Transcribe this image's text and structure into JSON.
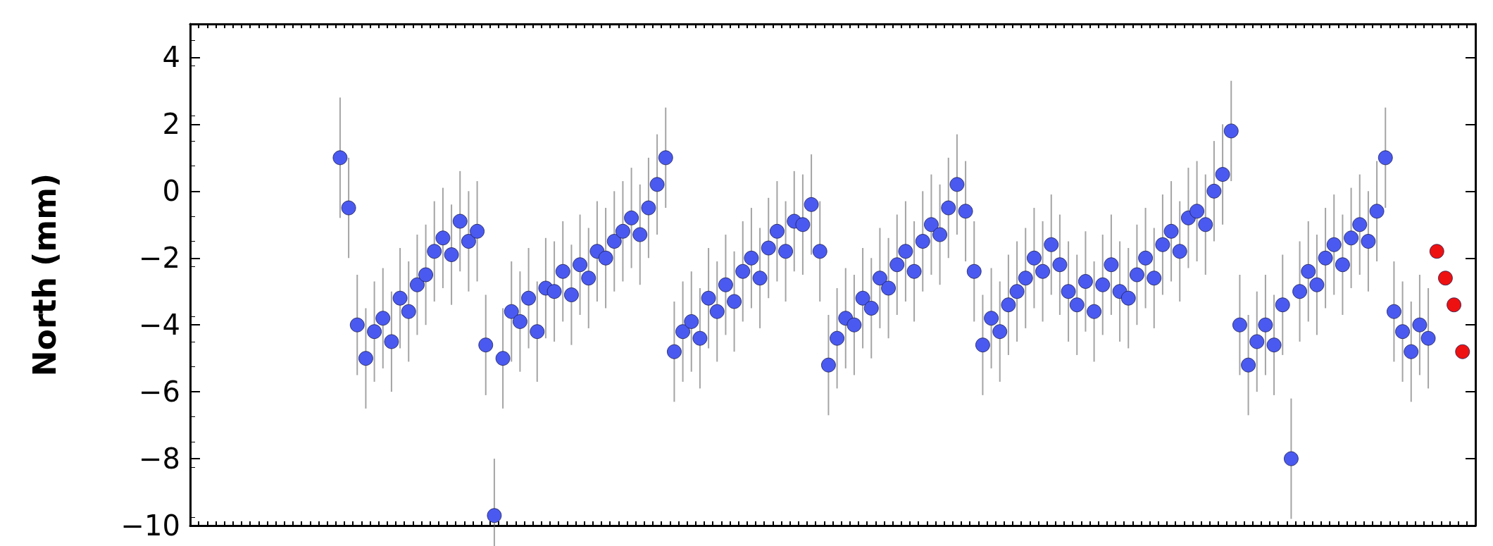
{
  "chart_data": {
    "type": "scatter",
    "ylabel": "North (mm)",
    "ylim": [
      -10,
      5
    ],
    "yticks": [
      {
        "value": -10,
        "label": "−10"
      },
      {
        "value": -8,
        "label": "−8"
      },
      {
        "value": -6,
        "label": "−6"
      },
      {
        "value": -4,
        "label": "−4"
      },
      {
        "value": -2,
        "label": "−2"
      },
      0,
      2,
      4
    ],
    "tick_labels": "y",
    "grid": false,
    "marker": "circle",
    "categories": [
      null,
      null,
      null,
      null,
      null,
      null,
      null,
      null,
      null,
      null,
      null,
      null,
      null,
      null,
      null,
      null,
      null,
      null,
      null,
      null,
      null,
      null,
      null,
      null,
      null,
      null,
      null,
      null,
      null,
      null,
      null,
      null,
      null,
      null,
      null,
      null,
      null,
      null,
      null,
      null,
      null,
      null,
      null,
      null,
      null,
      null,
      null,
      null,
      null,
      null,
      null,
      null,
      null,
      null,
      null,
      null,
      null,
      null,
      null,
      null,
      null,
      null,
      null,
      null,
      null,
      null,
      null,
      null,
      null,
      null,
      null,
      null,
      null,
      null,
      null,
      null,
      null,
      null,
      null,
      null,
      null,
      null,
      null,
      null,
      null,
      null,
      null,
      null,
      null,
      null,
      null,
      null,
      null,
      null,
      null,
      null,
      null,
      null,
      null,
      null,
      null,
      null,
      null,
      null,
      null,
      null,
      null,
      null,
      null,
      null,
      null,
      null,
      null,
      null,
      null,
      null,
      null,
      null,
      null,
      null,
      null,
      null,
      null,
      null,
      null,
      null,
      null,
      null,
      null,
      null,
      null,
      null,
      null,
      null,
      null,
      null,
      null,
      null,
      null,
      null,
      null,
      null,
      null,
      null,
      null,
      null,
      null,
      null,
      null,
      null
    ],
    "series": [
      {
        "color": "#4a5af0",
        "values": [
          null,
          null,
          null,
          null,
          null,
          null,
          null,
          null,
          null,
          null,
          null,
          null,
          null,
          null,
          null,
          null,
          null,
          1.0,
          -0.5,
          -4.0,
          -5.0,
          -4.2,
          -3.8,
          -4.5,
          -3.2,
          -3.6,
          -2.8,
          -2.5,
          -1.8,
          -1.4,
          -1.9,
          -0.9,
          -1.5,
          -1.2,
          -4.6,
          -9.7,
          -5.0,
          -3.6,
          -3.9,
          -3.2,
          -4.2,
          -2.9,
          -3.0,
          -2.4,
          -3.1,
          -2.2,
          -2.6,
          -1.8,
          -2.0,
          -1.5,
          -1.2,
          -0.8,
          -1.3,
          -0.5,
          0.2,
          1.0,
          -4.8,
          -4.2,
          -3.9,
          -4.4,
          -3.2,
          -3.6,
          -2.8,
          -3.3,
          -2.4,
          -2.0,
          -2.6,
          -1.7,
          -1.2,
          -1.8,
          -0.9,
          -1.0,
          -0.4,
          -1.8,
          -5.2,
          -4.4,
          -3.8,
          -4.0,
          -3.2,
          -3.5,
          -2.6,
          -2.9,
          -2.2,
          -1.8,
          -2.4,
          -1.5,
          -1.0,
          -1.3,
          -0.5,
          0.2,
          -0.6,
          -2.4,
          -4.6,
          -3.8,
          -4.2,
          -3.4,
          -3.0,
          -2.6,
          -2.0,
          -2.4,
          -1.6,
          -2.2,
          -3.0,
          -3.4,
          -2.7,
          -3.6,
          -2.8,
          -2.2,
          -3.0,
          -3.2,
          -2.5,
          -2.0,
          -2.6,
          -1.6,
          -1.2,
          -1.8,
          -0.8,
          -0.6,
          -1.0,
          0.0,
          0.5,
          1.8,
          -4.0,
          -5.2,
          -4.5,
          -4.0,
          -4.6,
          -3.4,
          -8.0,
          -3.0,
          -2.4,
          -2.8,
          -2.0,
          -1.6,
          -2.2,
          -1.4,
          -1.0,
          -1.5,
          -0.6,
          1.0,
          -3.6,
          -4.2,
          -4.8,
          -4.0,
          -4.4,
          null,
          null,
          null,
          null,
          null
        ],
        "errors": [
          null,
          null,
          null,
          null,
          null,
          null,
          null,
          null,
          null,
          null,
          null,
          null,
          null,
          null,
          null,
          null,
          null,
          1.8,
          1.5,
          1.5,
          1.5,
          1.5,
          1.5,
          1.5,
          1.5,
          1.5,
          1.5,
          1.5,
          1.5,
          1.5,
          1.5,
          1.5,
          1.5,
          1.5,
          1.5,
          1.7,
          1.5,
          1.5,
          1.5,
          1.5,
          1.5,
          1.5,
          1.5,
          1.5,
          1.5,
          1.5,
          1.5,
          1.5,
          1.5,
          1.5,
          1.5,
          1.5,
          1.5,
          1.5,
          1.5,
          1.5,
          1.5,
          1.5,
          1.5,
          1.5,
          1.5,
          1.5,
          1.5,
          1.5,
          1.5,
          1.5,
          1.5,
          1.5,
          1.5,
          1.5,
          1.5,
          1.5,
          1.5,
          1.5,
          1.5,
          1.5,
          1.5,
          1.5,
          1.5,
          1.5,
          1.5,
          1.5,
          1.5,
          1.5,
          1.5,
          1.5,
          1.5,
          1.5,
          1.5,
          1.5,
          1.5,
          1.5,
          1.5,
          1.5,
          1.5,
          1.5,
          1.5,
          1.5,
          1.5,
          1.5,
          1.5,
          1.5,
          1.5,
          1.5,
          1.5,
          1.5,
          1.5,
          1.5,
          1.5,
          1.5,
          1.5,
          1.5,
          1.5,
          1.5,
          1.5,
          1.5,
          1.5,
          1.5,
          1.5,
          1.5,
          1.5,
          1.5,
          1.5,
          1.5,
          1.5,
          1.5,
          1.5,
          1.5,
          1.8,
          1.5,
          1.5,
          1.5,
          1.5,
          1.5,
          1.5,
          1.5,
          1.5,
          1.5,
          1.5,
          1.5,
          1.5,
          1.5,
          1.5,
          1.5,
          1.5,
          null,
          null,
          null,
          null,
          null
        ]
      },
      {
        "color": "#ee1111",
        "values": [
          null,
          null,
          null,
          null,
          null,
          null,
          null,
          null,
          null,
          null,
          null,
          null,
          null,
          null,
          null,
          null,
          null,
          null,
          null,
          null,
          null,
          null,
          null,
          null,
          null,
          null,
          null,
          null,
          null,
          null,
          null,
          null,
          null,
          null,
          null,
          null,
          null,
          null,
          null,
          null,
          null,
          null,
          null,
          null,
          null,
          null,
          null,
          null,
          null,
          null,
          null,
          null,
          null,
          null,
          null,
          null,
          null,
          null,
          null,
          null,
          null,
          null,
          null,
          null,
          null,
          null,
          null,
          null,
          null,
          null,
          null,
          null,
          null,
          null,
          null,
          null,
          null,
          null,
          null,
          null,
          null,
          null,
          null,
          null,
          null,
          null,
          null,
          null,
          null,
          null,
          null,
          null,
          null,
          null,
          null,
          null,
          null,
          null,
          null,
          null,
          null,
          null,
          null,
          null,
          null,
          null,
          null,
          null,
          null,
          null,
          null,
          null,
          null,
          null,
          null,
          null,
          null,
          null,
          null,
          null,
          null,
          null,
          null,
          null,
          null,
          null,
          null,
          null,
          null,
          null,
          null,
          null,
          null,
          null,
          null,
          null,
          null,
          null,
          null,
          null,
          null,
          null,
          null,
          null,
          null,
          -1.8,
          -2.6,
          -3.4,
          -4.8,
          null
        ]
      }
    ]
  }
}
